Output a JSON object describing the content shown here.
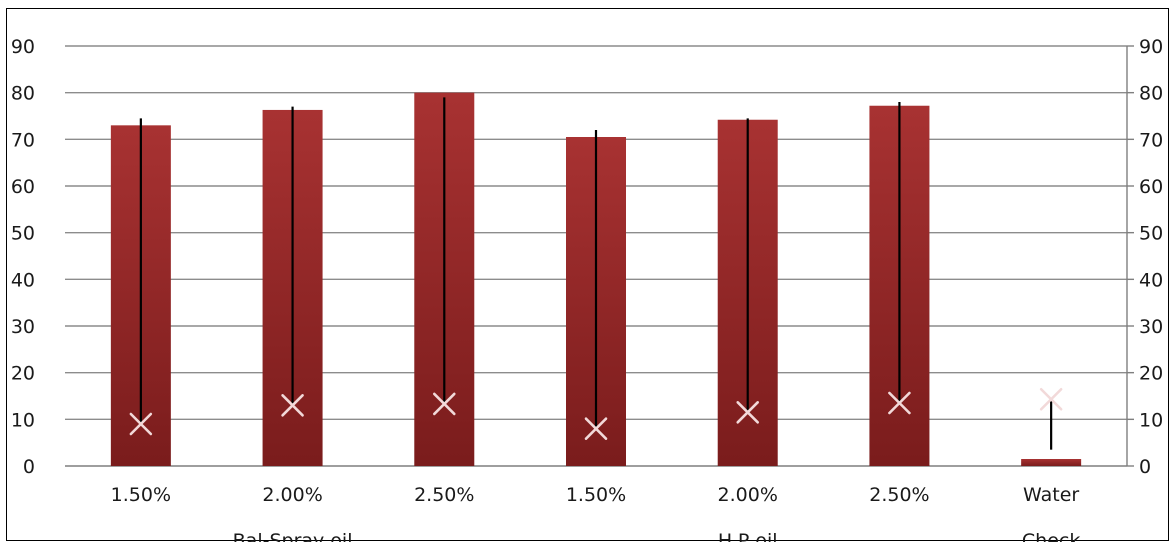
{
  "chart_data": {
    "type": "bar",
    "categories": [
      "1.50%",
      "2.00%",
      "2.50%",
      "1.50%",
      "2.00%",
      "2.50%",
      "Water"
    ],
    "groups": [
      {
        "label": "Bal-Spray oil",
        "span": [
          0,
          2
        ]
      },
      {
        "label": "H.P oil",
        "span": [
          3,
          5
        ]
      },
      {
        "label": "Check",
        "span": [
          6,
          6
        ]
      }
    ],
    "series": [
      {
        "type": "bar",
        "values": [
          73,
          76.3,
          80,
          70.5,
          74.2,
          77.2,
          1.5
        ],
        "color": "#9b2a2a"
      },
      {
        "type": "marker",
        "marker": "x",
        "values": [
          9,
          13,
          13.3,
          8,
          11.5,
          13.5,
          14.3
        ],
        "color": "#f2d9d9"
      }
    ],
    "error_bars": [
      {
        "low": 9,
        "high": 74.5
      },
      {
        "low": 13,
        "high": 77
      },
      {
        "low": 13.3,
        "high": 79
      },
      {
        "low": 8,
        "high": 72
      },
      {
        "low": 11.5,
        "high": 74.5
      },
      {
        "low": 13.5,
        "high": 78
      },
      {
        "low": 3.5,
        "high": 14.3
      }
    ],
    "ylim": [
      0,
      90
    ],
    "yticks": [
      0,
      10,
      20,
      30,
      40,
      50,
      60,
      70,
      80,
      90
    ],
    "secondary_yticks": [
      0,
      10,
      20,
      30,
      40,
      50,
      60,
      70,
      80,
      90
    ],
    "grid": true,
    "title": "",
    "xlabel": "",
    "ylabel": ""
  }
}
